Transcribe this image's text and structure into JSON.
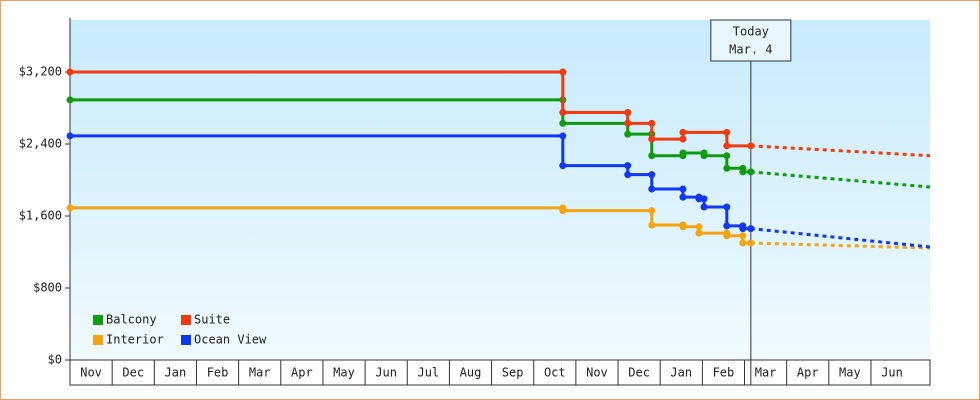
{
  "chart_data": {
    "type": "step",
    "categories": [
      "Nov",
      "Dec",
      "Jan",
      "Feb",
      "Mar",
      "Apr",
      "May",
      "Jun",
      "Jul",
      "Aug",
      "Sep",
      "Oct",
      "Nov",
      "Dec",
      "Jan",
      "Feb",
      "Mar",
      "Apr",
      "May",
      "Jun"
    ],
    "xlim": [
      0,
      20.4
    ],
    "ylim": [
      0,
      3778
    ],
    "yticks": [
      {
        "value": 0,
        "label": "$0"
      },
      {
        "value": 800,
        "label": "$800"
      },
      {
        "value": 1600,
        "label": "$1,600"
      },
      {
        "value": 2400,
        "label": "$2,400"
      },
      {
        "value": 3200,
        "label": "$3,200"
      }
    ],
    "today": {
      "x": 16.15,
      "lines": [
        "Today",
        "Mar. 4"
      ]
    },
    "series": [
      {
        "name": "Balcony",
        "color": "#109a10",
        "x": [
          0,
          11.69,
          13.23,
          13.8,
          14.54,
          15.04,
          15.58,
          15.96
        ],
        "values": [
          2890,
          2630,
          2510,
          2270,
          2300,
          2270,
          2130,
          2090
        ],
        "forecast": 1922
      },
      {
        "name": "Suite",
        "color": "#f03a10",
        "x": [
          0,
          11.69,
          13.23,
          13.8,
          14.54,
          15.58
        ],
        "values": [
          3200,
          2750,
          2630,
          2455,
          2530,
          2380
        ],
        "forecast": 2270
      },
      {
        "name": "Interior",
        "color": "#f4a410",
        "x": [
          0,
          11.69,
          13.8,
          14.54,
          14.92,
          15.58,
          15.96
        ],
        "values": [
          1690,
          1660,
          1500,
          1480,
          1410,
          1380,
          1300
        ],
        "forecast": 1244
      },
      {
        "name": "Ocean View",
        "color": "#1038f0",
        "x": [
          0,
          11.69,
          13.23,
          13.8,
          14.54,
          14.92,
          15.04,
          15.58,
          15.96
        ],
        "values": [
          2490,
          2160,
          2060,
          1900,
          1810,
          1790,
          1700,
          1490,
          1460
        ],
        "forecast": 1256
      }
    ]
  }
}
